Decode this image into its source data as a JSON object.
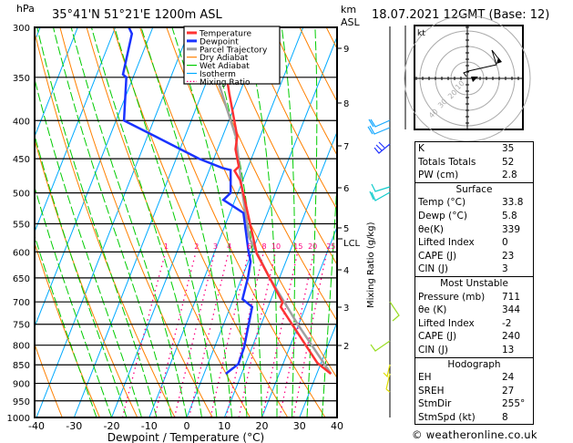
{
  "header": {
    "hpa_label": "hPa",
    "location": "35°41'N  51°21'E  1200m  ASL",
    "km_label": "km",
    "asl_label": "ASL",
    "datetime": "18.07.2021  12GMT  (Base: 12)"
  },
  "chart_data": {
    "type": "line",
    "subtype": "skew-T log-P",
    "xlabel": "Dewpoint / Temperature (°C)",
    "ylabel": "hPa",
    "xlim": [
      -40,
      40
    ],
    "ylim": [
      1000,
      300
    ],
    "x_ticks": [
      "-40",
      "-30",
      "-20",
      "-10",
      "0",
      "10",
      "20",
      "30",
      "40"
    ],
    "pressure_ticks": [
      "300",
      "350",
      "400",
      "450",
      "500",
      "550",
      "600",
      "650",
      "700",
      "750",
      "800",
      "850",
      "900",
      "950",
      "1000"
    ],
    "km_ticks": [
      "9",
      "8",
      "7",
      "6",
      "5",
      "4",
      "3",
      "2"
    ],
    "lcl_label": "LCL",
    "mixing_ratio_axis_label": "Mixing Ratio (g/kg)",
    "mixing_ratio_labels": [
      "1",
      "2",
      "3",
      "4",
      "6",
      "8",
      "10",
      "15",
      "20",
      "25"
    ],
    "legend": {
      "placement": "top-center",
      "entries": [
        {
          "label": "Temperature",
          "color": "#ff3333"
        },
        {
          "label": "Dewpoint",
          "color": "#1a33ff"
        },
        {
          "label": "Parcel Trajectory",
          "color": "#a0a0a0"
        },
        {
          "label": "Dry Adiabat",
          "color": "#ff8000"
        },
        {
          "label": "Wet Adiabat",
          "color": "#00cc00"
        },
        {
          "label": "Isotherm",
          "color": "#00aaff"
        },
        {
          "label": "Mixing Ratio",
          "color": "#ff0080"
        }
      ]
    },
    "series": [
      {
        "name": "Temperature",
        "p": [
          874,
          845,
          711,
          701,
          603,
          511,
          481,
          467,
          461,
          437,
          420,
          368,
          301,
          300
        ],
        "t": [
          33.8,
          29.0,
          13.4,
          13.4,
          1.4,
          -7.4,
          -10.7,
          -13.2,
          -12.5,
          -15.2,
          -16.1,
          -22.7,
          -32.3,
          -32.5
        ]
      },
      {
        "name": "Dewpoint",
        "p": [
          874,
          848,
          806,
          711,
          694,
          650,
          618,
          598,
          532,
          511,
          500,
          466,
          463,
          450,
          420,
          400,
          350,
          347,
          306,
          300
        ],
        "t": [
          5.8,
          8.1,
          7.9,
          5.8,
          2.4,
          1.6,
          0.6,
          -1.1,
          -6.4,
          -13.1,
          -11.9,
          -14.3,
          -16.7,
          -23.9,
          -37.9,
          -47.9,
          -51.8,
          -53.0,
          -54.9,
          -56.4
        ]
      },
      {
        "name": "Parcel Trajectory",
        "p": [
          874,
          748,
          650,
          573,
          504,
          420,
          356,
          304
        ],
        "t": [
          33.8,
          19.5,
          7.4,
          -2.4,
          -8.4,
          -16.5,
          -26.7,
          -36.0
        ]
      }
    ]
  },
  "hodograph": {
    "unit_label": "kt",
    "ring_labels": [
      "10",
      "20",
      "30",
      "40"
    ]
  },
  "stats": {
    "indices": [
      {
        "label": "K",
        "value": "35"
      },
      {
        "label": "Totals Totals",
        "value": "52"
      },
      {
        "label": "PW (cm)",
        "value": "2.8"
      }
    ],
    "surface": {
      "title": "Surface",
      "rows": [
        {
          "label": "Temp (°C)",
          "value": "33.8"
        },
        {
          "label": "Dewp (°C)",
          "value": "5.8"
        },
        {
          "label": "θe(K)",
          "value": "339"
        },
        {
          "label": "Lifted Index",
          "value": "0"
        },
        {
          "label": "CAPE (J)",
          "value": "23"
        },
        {
          "label": "CIN (J)",
          "value": "3"
        }
      ]
    },
    "most_unstable": {
      "title": "Most Unstable",
      "rows": [
        {
          "label": "Pressure (mb)",
          "value": "711"
        },
        {
          "label": "θe (K)",
          "value": "344"
        },
        {
          "label": "Lifted Index",
          "value": "-2"
        },
        {
          "label": "CAPE (J)",
          "value": "240"
        },
        {
          "label": "CIN (J)",
          "value": "13"
        }
      ]
    },
    "hodograph": {
      "title": "Hodograph",
      "rows": [
        {
          "label": "EH",
          "value": "24"
        },
        {
          "label": "SREH",
          "value": "27"
        },
        {
          "label": "StmDir",
          "value": "255°"
        },
        {
          "label": "StmSpd (kt)",
          "value": "8"
        }
      ]
    }
  },
  "footer": {
    "copyright": "© weatheronline.co.uk"
  }
}
